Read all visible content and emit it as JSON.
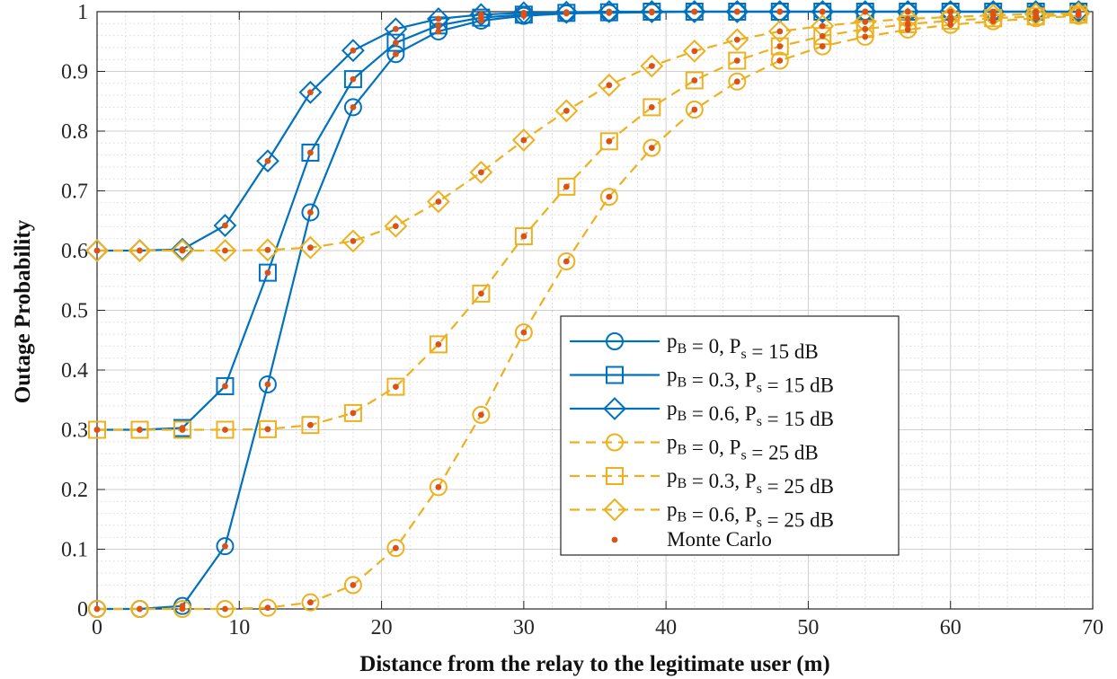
{
  "chart_data": {
    "type": "line",
    "title": "",
    "xlabel": "Distance from the relay to the legitimate user (m)",
    "ylabel": "Outage Probability",
    "xlim": [
      0,
      70
    ],
    "ylim": [
      0,
      1
    ],
    "xticks": [
      0,
      10,
      20,
      30,
      40,
      50,
      60,
      70
    ],
    "xtick_labels": [
      "0",
      "10",
      "20",
      "30",
      "40",
      "50",
      "60",
      "70"
    ],
    "yticks": [
      0,
      0.1,
      0.2,
      0.3,
      0.4,
      0.5,
      0.6,
      0.7,
      0.8,
      0.9,
      1
    ],
    "ytick_labels": [
      "0",
      "0.1",
      "0.2",
      "0.3",
      "0.4",
      "0.5",
      "0.6",
      "0.7",
      "0.8",
      "0.9",
      "1"
    ],
    "grid": "major and minor (dotted)",
    "legend_position": "lower-right inside",
    "colors": {
      "blue": "#0072BD",
      "orange": "#EDB120",
      "monte_carlo": "#D95319"
    },
    "x": [
      0,
      3,
      6,
      9,
      12,
      15,
      18,
      21,
      24,
      27,
      30,
      33,
      36,
      39,
      42,
      45,
      48,
      51,
      54,
      57,
      60,
      63,
      66,
      69
    ],
    "series": [
      {
        "legend": {
          "base": "p",
          "sub1": "B",
          "mid": " = 0, P",
          "sub2": "s",
          "tail": " = 15 dB"
        },
        "color": "#0072BD",
        "marker": "circle",
        "dash": "solid",
        "values": [
          0,
          0,
          0.005,
          0.105,
          0.376,
          0.664,
          0.84,
          0.929,
          0.967,
          0.985,
          0.993,
          0.997,
          0.998,
          0.999,
          1,
          1,
          1,
          1,
          1,
          1,
          1,
          1,
          1,
          1
        ]
      },
      {
        "legend": {
          "base": "p",
          "sub1": "B",
          "mid": " = 0.3, P",
          "sub2": "s",
          "tail": " = 15 dB"
        },
        "color": "#0072BD",
        "marker": "square",
        "dash": "solid",
        "values": [
          0.3,
          0.3,
          0.303,
          0.373,
          0.563,
          0.764,
          0.887,
          0.948,
          0.977,
          0.99,
          0.995,
          0.998,
          0.999,
          1,
          1,
          1,
          1,
          1,
          1,
          1,
          1,
          1,
          1,
          1
        ]
      },
      {
        "legend": {
          "base": "p",
          "sub1": "B",
          "mid": " = 0.6, P",
          "sub2": "s",
          "tail": " = 15 dB"
        },
        "color": "#0072BD",
        "marker": "diamond",
        "dash": "solid",
        "values": [
          0.6,
          0.6,
          0.602,
          0.642,
          0.75,
          0.865,
          0.935,
          0.971,
          0.988,
          0.995,
          0.998,
          0.999,
          1,
          1,
          1,
          1,
          1,
          1,
          1,
          1,
          1,
          1,
          1,
          1
        ]
      },
      {
        "legend": {
          "base": "p",
          "sub1": "B",
          "mid": " = 0, P",
          "sub2": "s",
          "tail": " = 25 dB"
        },
        "color": "#EDB120",
        "marker": "circle",
        "dash": "dashed",
        "values": [
          0,
          0,
          0,
          0,
          0.002,
          0.011,
          0.04,
          0.102,
          0.204,
          0.325,
          0.463,
          0.582,
          0.69,
          0.772,
          0.836,
          0.883,
          0.918,
          0.942,
          0.958,
          0.97,
          0.978,
          0.984,
          0.989,
          0.993
        ]
      },
      {
        "legend": {
          "base": "p",
          "sub1": "B",
          "mid": " = 0.3, P",
          "sub2": "s",
          "tail": " = 25 dB"
        },
        "color": "#EDB120",
        "marker": "square",
        "dash": "dashed",
        "values": [
          0.3,
          0.3,
          0.3,
          0.3,
          0.301,
          0.308,
          0.328,
          0.372,
          0.443,
          0.528,
          0.624,
          0.707,
          0.783,
          0.84,
          0.885,
          0.918,
          0.942,
          0.959,
          0.971,
          0.979,
          0.985,
          0.989,
          0.992,
          0.995
        ]
      },
      {
        "legend": {
          "base": "p",
          "sub1": "B",
          "mid": " = 0.6, P",
          "sub2": "s",
          "tail": " = 25 dB"
        },
        "color": "#EDB120",
        "marker": "diamond",
        "dash": "dashed",
        "values": [
          0.6,
          0.6,
          0.6,
          0.6,
          0.601,
          0.605,
          0.616,
          0.641,
          0.682,
          0.731,
          0.785,
          0.834,
          0.877,
          0.909,
          0.934,
          0.953,
          0.967,
          0.976,
          0.983,
          0.988,
          0.991,
          0.994,
          0.996,
          0.997
        ]
      }
    ],
    "monte_carlo_legend": "Monte Carlo"
  }
}
